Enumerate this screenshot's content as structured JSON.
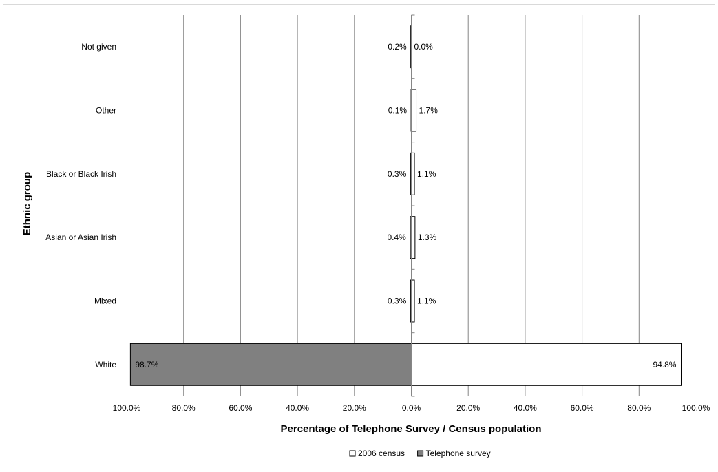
{
  "chart_data": {
    "type": "bar",
    "orientation": "horizontal",
    "layout": "back-to-back",
    "categories": [
      "White",
      "Mixed",
      "Asian or Asian Irish",
      "Black or Black Irish",
      "Other",
      "Not given"
    ],
    "series": [
      {
        "name": "Telephone survey",
        "side": "left",
        "color": "#808080",
        "values": [
          98.7,
          0.3,
          0.4,
          0.3,
          0.1,
          0.2
        ],
        "labels": [
          "98.7%",
          "0.3%",
          "0.4%",
          "0.3%",
          "0.1%",
          "0.2%"
        ]
      },
      {
        "name": "2006 census",
        "side": "right",
        "color": "#ffffff",
        "values": [
          94.8,
          1.1,
          1.3,
          1.1,
          1.7,
          0.0
        ],
        "labels": [
          "94.8%",
          "1.1%",
          "1.3%",
          "1.1%",
          "1.7%",
          "0.0%"
        ]
      }
    ],
    "xticks": [
      "100.0%",
      "80.0%",
      "60.0%",
      "40.0%",
      "20.0%",
      "0.0%",
      "20.0%",
      "40.0%",
      "60.0%",
      "80.0%",
      "100.0%"
    ],
    "xlim": [
      -100,
      100
    ],
    "xlabel": "Percentage of Telephone Survey / Census population",
    "ylabel": "Ethnic group",
    "grid": "vertical",
    "legend_position": "bottom",
    "legend": [
      "2006 census",
      "Telephone survey"
    ]
  }
}
